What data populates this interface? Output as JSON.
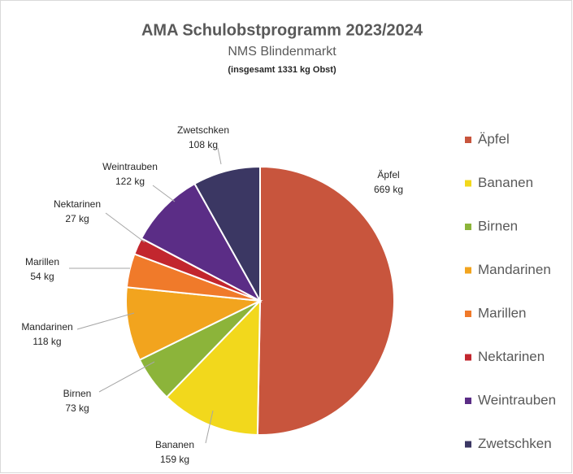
{
  "chart_data": {
    "type": "pie",
    "title": "AMA Schulobstprogramm 2023/2024",
    "subtitle": "NMS Blindenmarkt",
    "note": "(insgesamt 1331 kg Obst)",
    "categories": [
      "Äpfel",
      "Bananen",
      "Birnen",
      "Mandarinen",
      "Marillen",
      "Nektarinen",
      "Weintrauben",
      "Zwetschken"
    ],
    "values": [
      669,
      159,
      73,
      118,
      54,
      27,
      122,
      108
    ],
    "value_labels": [
      "669 kg",
      "159 kg",
      "73 kg",
      "118 kg",
      "54 kg",
      "27 kg",
      "122 kg",
      "108 kg"
    ],
    "colors": [
      "#c8553d",
      "#f2d81c",
      "#8cb43a",
      "#f2a41e",
      "#f07a2a",
      "#c2262e",
      "#5b2d86",
      "#3b3763"
    ],
    "legend": "right"
  }
}
